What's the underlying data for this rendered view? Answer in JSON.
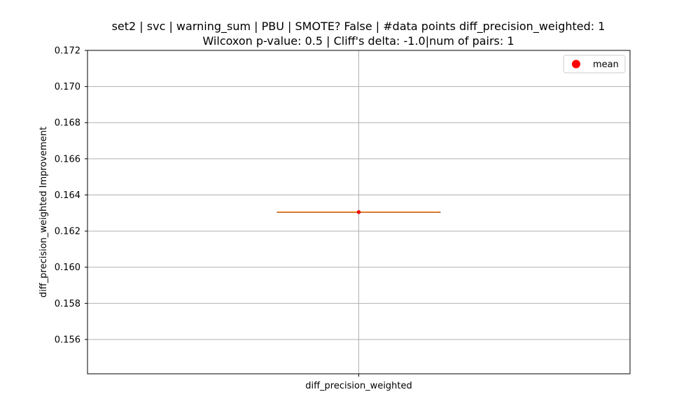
{
  "chart_data": {
    "type": "box",
    "title_lines": [
      "set2 | svc | warning_sum | PBU | SMOTE? False | #data points diff_precision_weighted: 1",
      "Wilcoxon p-value: 0.5 | Cliff's delta: -1.0|num of pairs: 1"
    ],
    "xlabel": "",
    "ylabel": "diff_precision_weighted Improvement",
    "categories": [
      "diff_precision_weighted"
    ],
    "ylim": [
      0.1541,
      0.172
    ],
    "yticks": [
      0.156,
      0.158,
      0.16,
      0.162,
      0.164,
      0.166,
      0.168,
      0.17,
      0.172
    ],
    "ytick_labels": [
      "0.156",
      "0.158",
      "0.160",
      "0.162",
      "0.164",
      "0.166",
      "0.168",
      "0.170",
      "0.172"
    ],
    "grid": true,
    "legend": {
      "position": "top-right",
      "entries": [
        "mean"
      ]
    },
    "series": [
      {
        "category": "diff_precision_weighted",
        "min": 0.16305,
        "q1": 0.16305,
        "median": 0.16305,
        "q3": 0.16305,
        "max": 0.16305,
        "mean": 0.16305
      }
    ],
    "colors": {
      "median": "#ff7f0e",
      "box": "#000000",
      "mean": "#ff0000",
      "grid": "#b0b0b0"
    }
  }
}
